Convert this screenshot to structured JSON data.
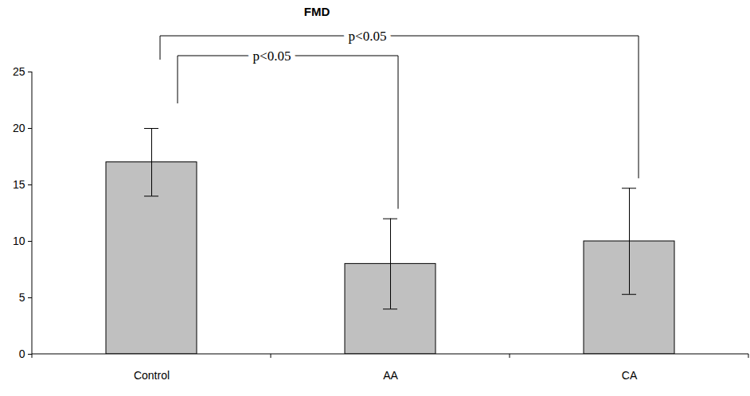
{
  "chart_data": {
    "type": "bar",
    "title": "FMD",
    "categories": [
      "Control",
      "AA",
      "CA"
    ],
    "values": [
      17,
      8,
      10
    ],
    "errors": [
      3,
      4,
      4.7
    ],
    "color": "#c0c0c0",
    "ylim": [
      0,
      25
    ],
    "yticks": [
      0,
      5,
      10,
      15,
      20,
      25
    ],
    "grid": false,
    "annotations": [
      {
        "text": "p<0.05",
        "from": "Control",
        "to": "AA"
      },
      {
        "text": "p<0.05",
        "from": "Control",
        "to": "CA"
      }
    ]
  }
}
